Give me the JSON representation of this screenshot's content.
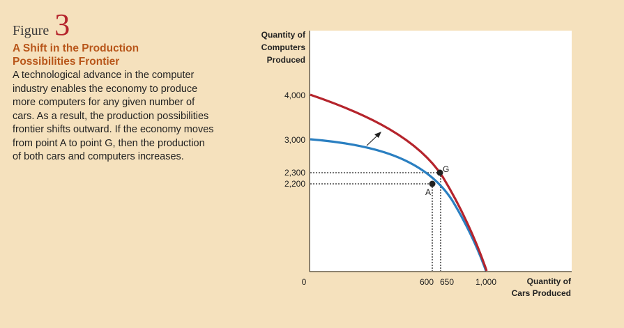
{
  "figure": {
    "label": "Figure",
    "number": "3",
    "title": "A Shift in the Production Possibilities Frontier",
    "caption": "A technological advance in the computer industry enables the economy to produce more computers for any given number of cars. As a result, the production possibilities frontier shifts outward. If the economy moves from point A to point G, then the production of both cars and computers increases."
  },
  "chart_data": {
    "type": "line",
    "ylabel": [
      "Quantity of",
      "Computers",
      "Produced"
    ],
    "xlabel": [
      "Quantity of",
      "Cars Produced"
    ],
    "xlim": [
      0,
      1000
    ],
    "ylim": [
      0,
      4000
    ],
    "x_ticks": [
      "600",
      "650",
      "1,000"
    ],
    "y_ticks": [
      "4,000",
      "3,000",
      "2,300",
      "2,200"
    ],
    "origin_label": "0",
    "series": [
      {
        "color": "#b5242c",
        "points": [
          [
            0,
            4000
          ],
          [
            200,
            3700
          ],
          [
            400,
            3300
          ],
          [
            600,
            2600
          ],
          [
            650,
            2300
          ],
          [
            800,
            1500
          ],
          [
            1000,
            0
          ]
        ]
      },
      {
        "color": "#2a7fc1",
        "points": [
          [
            0,
            3000
          ],
          [
            200,
            2850
          ],
          [
            400,
            2500
          ],
          [
            600,
            2200
          ],
          [
            800,
            1200
          ],
          [
            1000,
            0
          ]
        ]
      }
    ],
    "points": [
      {
        "label": "A",
        "x": 600,
        "y": 2200
      },
      {
        "label": "G",
        "x": 650,
        "y": 2300
      }
    ],
    "shift_arrow": "outward"
  }
}
